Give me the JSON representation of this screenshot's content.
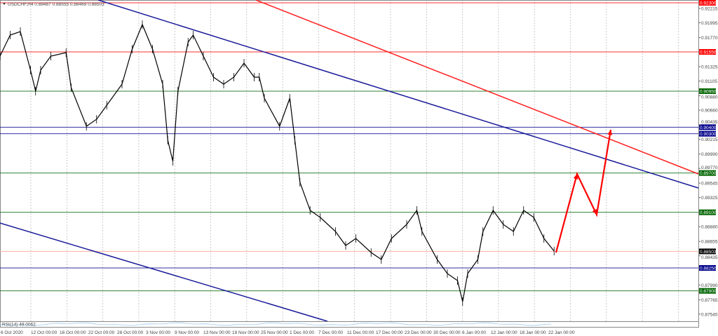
{
  "chart_data": {
    "type": "line",
    "title": "USDCHF,H4",
    "ohlc_readout": "0.88487 0.88555 0.88469 0.88503",
    "symbol": "USDCHF",
    "timeframe": "H4",
    "ylim": [
      0.8745,
      0.9235
    ],
    "grid": true,
    "y_ticks": [
      "0.92215",
      "0.91995",
      "0.91770",
      "0.91325",
      "0.91105",
      "0.90880",
      "0.90660",
      "0.90435",
      "0.90215",
      "0.89990",
      "0.89770",
      "0.89545",
      "0.89325",
      "0.88880",
      "0.88655",
      "0.88435",
      "0.87990",
      "0.87765",
      "0.87545"
    ],
    "x_ticks": [
      "6 Oct 2020",
      "12 Oct 00:00",
      "16 Oct 00:00",
      "22 Oct 00:00",
      "28 Oct 00:00",
      "3 Nov 00:00",
      "9 Nov 00:00",
      "13 Nov 00:00",
      "19 Nov 00:00",
      "25 Nov 00:00",
      "1 Dec 00:00",
      "7 Dec 00:00",
      "11 Dec 00:00",
      "17 Dec 00:00",
      "23 Dec 00:00",
      "30 Dec 00:00",
      "6 Jan 00:00",
      "12 Jan 00:00",
      "18 Jan 00:00",
      "22 Jan 00:00"
    ],
    "series": [
      {
        "x": [
          "2020-10-06",
          "2020-10-08",
          "2020-10-10",
          "2020-10-12",
          "2020-10-13",
          "2020-10-14",
          "2020-10-16",
          "2020-10-19",
          "2020-10-20",
          "2020-10-23",
          "2020-10-25",
          "2020-10-27",
          "2020-10-30",
          "2020-11-01",
          "2020-11-03",
          "2020-11-05",
          "2020-11-07",
          "2020-11-08",
          "2020-11-09",
          "2020-11-10",
          "2020-11-12",
          "2020-11-13",
          "2020-11-15",
          "2020-11-17",
          "2020-11-19",
          "2020-11-21",
          "2020-11-23",
          "2020-11-25",
          "2020-11-26",
          "2020-11-27",
          "2020-11-30",
          "2020-12-02",
          "2020-12-03",
          "2020-12-04",
          "2020-12-06",
          "2020-12-08",
          "2020-12-11",
          "2020-12-13",
          "2020-12-15",
          "2020-12-18",
          "2020-12-20",
          "2020-12-22",
          "2020-12-25",
          "2020-12-27",
          "2020-12-28",
          "2020-12-31",
          "2021-01-02",
          "2021-01-04",
          "2021-01-05",
          "2021-01-06",
          "2021-01-08",
          "2021-01-09",
          "2021-01-11",
          "2021-01-13",
          "2021-01-15",
          "2021-01-17",
          "2021-01-19",
          "2021-01-21",
          "2021-01-23"
        ],
        "y": [
          0.91486,
          0.91807,
          0.91861,
          0.91271,
          0.9095,
          0.91271,
          0.91486,
          0.91539,
          0.91004,
          0.90414,
          0.90521,
          0.90736,
          0.91057,
          0.91593,
          0.91968,
          0.91593,
          0.91057,
          0.902,
          0.89879,
          0.9095,
          0.917,
          0.91807,
          0.91486,
          0.91164,
          0.91057,
          0.91164,
          0.91379,
          0.91164,
          0.91164,
          0.90843,
          0.90414,
          0.90843,
          0.902,
          0.89557,
          0.89129,
          0.89021,
          0.88807,
          0.88593,
          0.887,
          0.88486,
          0.88379,
          0.887,
          0.88914,
          0.89129,
          0.88807,
          0.88379,
          0.88164,
          0.88057,
          0.87736,
          0.88164,
          0.88379,
          0.88807,
          0.89129,
          0.88914,
          0.88807,
          0.89129,
          0.89021,
          0.887,
          0.88507
        ]
      }
    ],
    "levels": [
      {
        "price": 0.923,
        "label": "0.92300",
        "color": "#ff0000"
      },
      {
        "price": 0.9155,
        "label": "0.91550",
        "color": "#ff0000"
      },
      {
        "price": 0.9095,
        "label": "0.90950",
        "color": "#006400"
      },
      {
        "price": 0.904,
        "label": "0.90400",
        "color": "#00008b"
      },
      {
        "price": 0.903,
        "label": "0.90300",
        "color": "#00008b"
      },
      {
        "price": 0.897,
        "label": "0.89700",
        "color": "#006400"
      },
      {
        "price": 0.891,
        "label": "0.89100",
        "color": "#006400"
      },
      {
        "price": 0.8825,
        "label": "0.88250",
        "color": "#00008b"
      },
      {
        "price": 0.879,
        "label": "0.87900",
        "color": "#006400"
      }
    ],
    "current_price": {
      "price": 0.88503,
      "label": "0.88503",
      "color": "#000000",
      "line_color": "#ffb0a0"
    },
    "indicator_label": "RSI(14) 49.0062",
    "colors": {
      "trend_blue": "#1a1a9a",
      "trend_red": "#ff2020",
      "arrow": "#ff0000",
      "rsi": "#9ecbf0"
    }
  }
}
